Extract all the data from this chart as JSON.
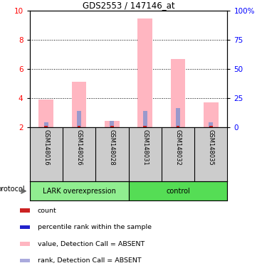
{
  "title": "GDS2553 / 147146_at",
  "samples": [
    "GSM148016",
    "GSM148026",
    "GSM148028",
    "GSM148031",
    "GSM148032",
    "GSM148035"
  ],
  "pink_values": [
    3.9,
    5.1,
    2.4,
    9.5,
    6.7,
    3.7
  ],
  "blue_values": [
    2.3,
    3.1,
    2.4,
    3.1,
    3.3,
    2.3
  ],
  "ylim_left": [
    2,
    10
  ],
  "ylim_right": [
    0,
    100
  ],
  "yticks_left": [
    2,
    4,
    6,
    8,
    10
  ],
  "yticks_right": [
    0,
    25,
    50,
    75,
    100
  ],
  "ytick_labels_right": [
    "0",
    "25",
    "50",
    "75",
    "100%"
  ],
  "bar_bottom": 2.0,
  "bar_width": 0.45,
  "pink_color": "#FFB6C1",
  "blue_color": "#9999CC",
  "red_color": "#CC2222",
  "bg_color": "#CCCCCC",
  "lark_color": "#90EE90",
  "ctrl_color": "#55DD55",
  "group_label_lark": "LARK overexpression",
  "group_label_control": "control",
  "protocol_label": "protocol",
  "legend_colors": [
    "#CC2222",
    "#2222CC",
    "#FFB6C1",
    "#AAAADD"
  ],
  "legend_labels": [
    "count",
    "percentile rank within the sample",
    "value, Detection Call = ABSENT",
    "rank, Detection Call = ABSENT"
  ]
}
